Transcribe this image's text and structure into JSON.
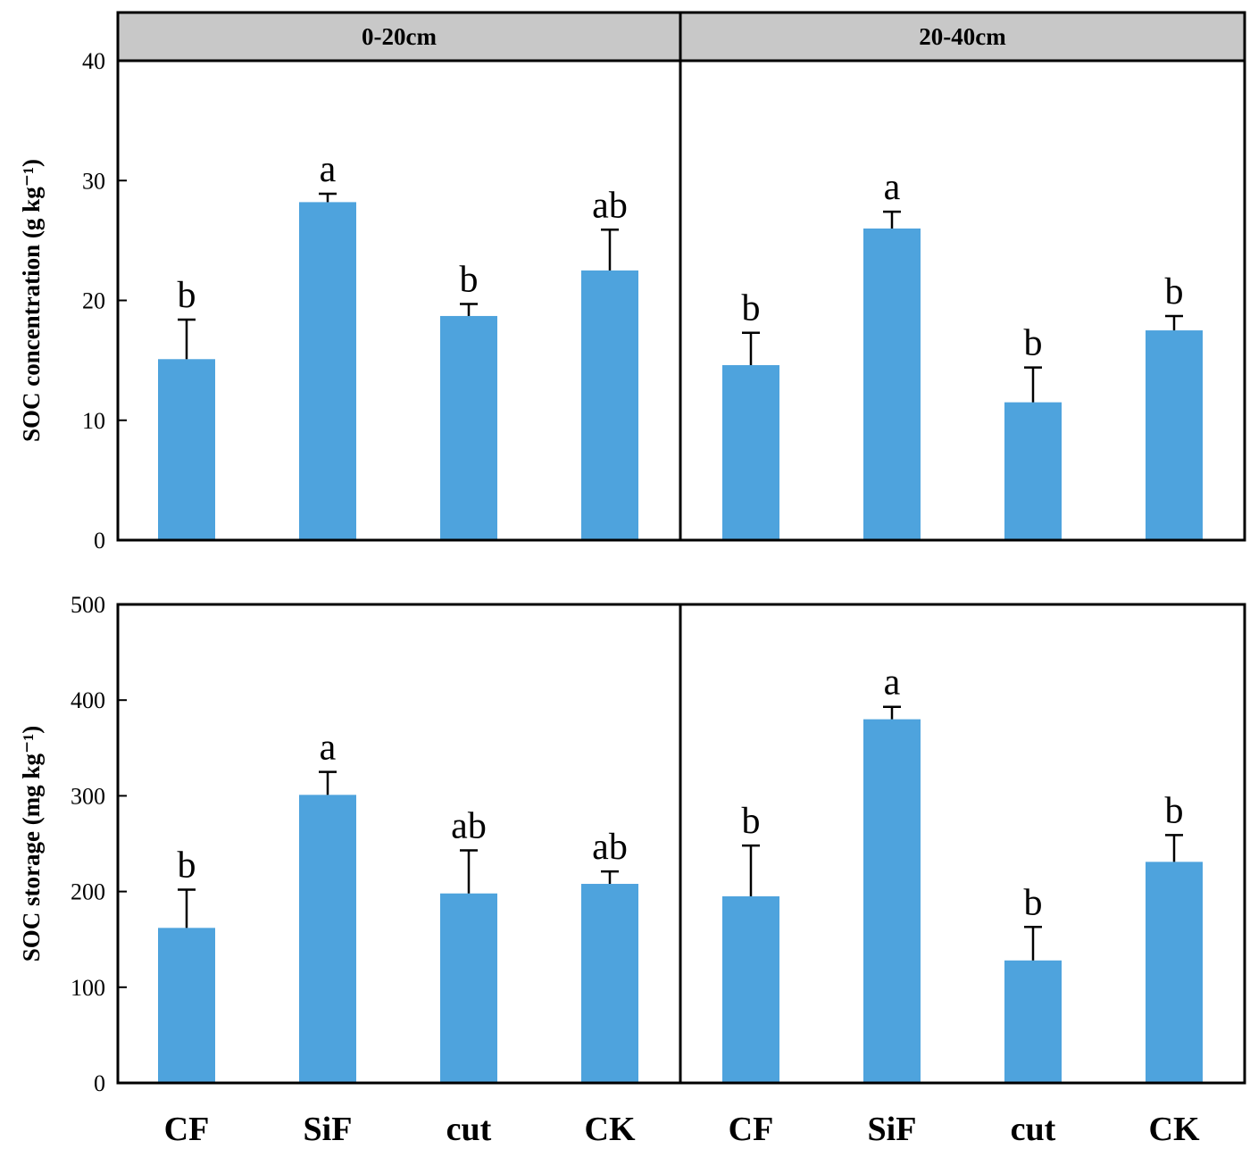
{
  "chart_data": [
    {
      "type": "bar",
      "panel": "top",
      "ylabel": "SOC concentration (g kg⁻¹)",
      "ylim": [
        0,
        40
      ],
      "yticks": [
        0,
        10,
        20,
        30,
        40
      ],
      "groups": [
        {
          "label": "0-20cm",
          "categories": [
            "CF",
            "SiF",
            "cut",
            "CK"
          ],
          "values": [
            15.1,
            28.2,
            18.7,
            22.5
          ],
          "errors": [
            3.3,
            0.7,
            1.0,
            3.4
          ],
          "letters": [
            "b",
            "a",
            "b",
            "ab"
          ]
        },
        {
          "label": "20-40cm",
          "categories": [
            "CF",
            "SiF",
            "cut",
            "CK"
          ],
          "values": [
            14.6,
            26.0,
            11.5,
            17.5
          ],
          "errors": [
            2.7,
            1.4,
            2.9,
            1.2
          ],
          "letters": [
            "b",
            "a",
            "b",
            "b"
          ]
        }
      ]
    },
    {
      "type": "bar",
      "panel": "bottom",
      "ylabel": "SOC storage (mg kg⁻¹)",
      "ylim": [
        0,
        500
      ],
      "yticks": [
        0,
        100,
        200,
        300,
        400,
        500
      ],
      "groups": [
        {
          "label": "0-20cm",
          "categories": [
            "CF",
            "SiF",
            "cut",
            "CK"
          ],
          "values": [
            162,
            301,
            198,
            208
          ],
          "errors": [
            40,
            24,
            45,
            13
          ],
          "letters": [
            "b",
            "a",
            "ab",
            "ab"
          ]
        },
        {
          "label": "20-40cm",
          "categories": [
            "CF",
            "SiF",
            "cut",
            "CK"
          ],
          "values": [
            195,
            380,
            128,
            231
          ],
          "errors": [
            53,
            13,
            35,
            28
          ],
          "letters": [
            "b",
            "a",
            "b",
            "b"
          ]
        }
      ]
    }
  ],
  "colors": {
    "bar": "#4ea3dd",
    "frame": "#000000",
    "strip": "#c8c8c8"
  },
  "x_axis_labels": [
    "CF",
    "SiF",
    "cut",
    "CK",
    "CF",
    "SiF",
    "cut",
    "CK"
  ]
}
